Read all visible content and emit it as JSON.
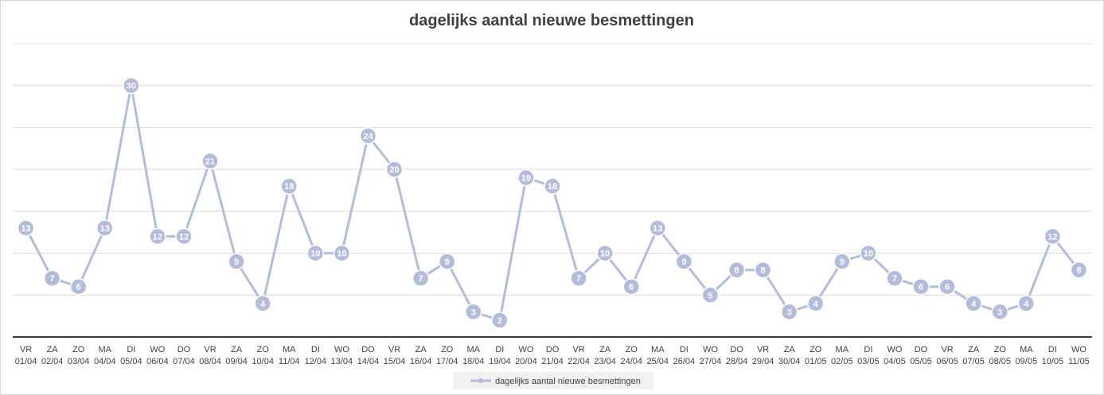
{
  "colors": {
    "series": "#b4bcdc",
    "gridline": "#d9d9d9",
    "axis": "#404040",
    "text": "#404040",
    "legend_bg": "#f2f2f2"
  },
  "chart_data": {
    "type": "line",
    "title": "dagelijks aantal nieuwe besmettingen",
    "xlabel": "",
    "ylabel": "",
    "ylim": [
      0,
      35
    ],
    "grid": true,
    "y_tick_labels_shown": false,
    "legend_position": "bottom",
    "data_labels": true,
    "categories": [
      {
        "day": "VR",
        "date": "01/04"
      },
      {
        "day": "ZA",
        "date": "02/04"
      },
      {
        "day": "ZO",
        "date": "03/04"
      },
      {
        "day": "MA",
        "date": "04/04"
      },
      {
        "day": "DI",
        "date": "05/04"
      },
      {
        "day": "WO",
        "date": "06/04"
      },
      {
        "day": "DO",
        "date": "07/04"
      },
      {
        "day": "VR",
        "date": "08/04"
      },
      {
        "day": "ZA",
        "date": "09/04"
      },
      {
        "day": "ZO",
        "date": "10/04"
      },
      {
        "day": "MA",
        "date": "11/04"
      },
      {
        "day": "DI",
        "date": "12/04"
      },
      {
        "day": "WO",
        "date": "13/04"
      },
      {
        "day": "DO",
        "date": "14/04"
      },
      {
        "day": "VR",
        "date": "15/04"
      },
      {
        "day": "ZA",
        "date": "16/04"
      },
      {
        "day": "ZO",
        "date": "17/04"
      },
      {
        "day": "MA",
        "date": "18/04"
      },
      {
        "day": "DI",
        "date": "19/04"
      },
      {
        "day": "WO",
        "date": "20/04"
      },
      {
        "day": "DO",
        "date": "21/04"
      },
      {
        "day": "VR",
        "date": "22/04"
      },
      {
        "day": "ZA",
        "date": "23/04"
      },
      {
        "day": "ZO",
        "date": "24/04"
      },
      {
        "day": "MA",
        "date": "25/04"
      },
      {
        "day": "DI",
        "date": "26/04"
      },
      {
        "day": "WO",
        "date": "27/04"
      },
      {
        "day": "DO",
        "date": "28/04"
      },
      {
        "day": "VR",
        "date": "29/04"
      },
      {
        "day": "ZA",
        "date": "30/04"
      },
      {
        "day": "ZO",
        "date": "01/05"
      },
      {
        "day": "MA",
        "date": "02/05"
      },
      {
        "day": "DI",
        "date": "03/05"
      },
      {
        "day": "WO",
        "date": "04/05"
      },
      {
        "day": "DO",
        "date": "05/05"
      },
      {
        "day": "VR",
        "date": "06/05"
      },
      {
        "day": "ZA",
        "date": "07/05"
      },
      {
        "day": "ZO",
        "date": "08/05"
      },
      {
        "day": "MA",
        "date": "09/05"
      },
      {
        "day": "DI",
        "date": "10/05"
      },
      {
        "day": "WO",
        "date": "11/05"
      }
    ],
    "series": [
      {
        "name": "dagelijks aantal nieuwe besmettingen",
        "values": [
          13,
          7,
          6,
          13,
          30,
          12,
          12,
          21,
          9,
          4,
          18,
          10,
          10,
          24,
          20,
          7,
          9,
          3,
          2,
          19,
          18,
          7,
          10,
          6,
          13,
          9,
          5,
          8,
          8,
          3,
          4,
          9,
          10,
          7,
          6,
          6,
          4,
          3,
          4,
          12,
          8
        ]
      }
    ]
  }
}
